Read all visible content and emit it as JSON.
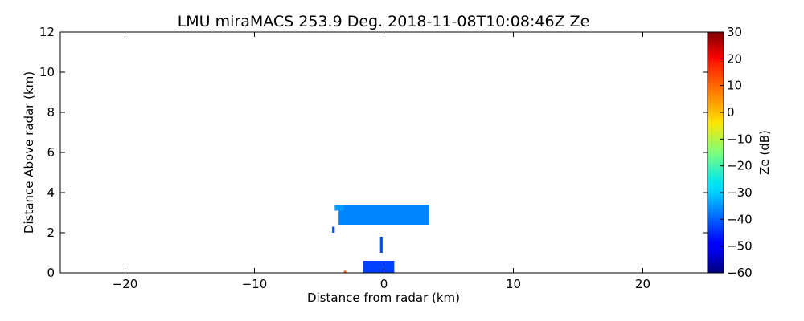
{
  "chart_data": {
    "type": "heatmap",
    "title": "LMU miraMACS 253.9 Deg. 2018-11-08T10:08:46Z  Ze",
    "xlabel": "Distance from radar (km)",
    "ylabel": "Distance Above radar  (km)",
    "xlim": [
      -25,
      25
    ],
    "ylim": [
      0,
      12
    ],
    "xticks": [
      -20,
      -10,
      0,
      10,
      20
    ],
    "xtick_labels": [
      "−20",
      "−10",
      "0",
      "10",
      "20"
    ],
    "yticks": [
      0,
      2,
      4,
      6,
      8,
      10,
      12
    ],
    "ytick_labels": [
      "0",
      "2",
      "4",
      "6",
      "8",
      "10",
      "12"
    ],
    "grid": false,
    "colorbar": {
      "label": "Ze (dB)",
      "colormap": "jet",
      "range": [
        -60,
        30
      ],
      "ticks": [
        -60,
        -50,
        -40,
        -30,
        -20,
        -10,
        0,
        10,
        20,
        30
      ],
      "tick_labels": [
        "−60",
        "−50",
        "−40",
        "−30",
        "−20",
        "−10",
        "0",
        "10",
        "20",
        "30"
      ]
    },
    "echoes": [
      {
        "x": [
          -3.5,
          3.5
        ],
        "y": [
          2.4,
          3.4
        ],
        "ze_db": -37
      },
      {
        "x": [
          -3.8,
          -3.1
        ],
        "y": [
          3.1,
          3.4
        ],
        "ze_db": -35
      },
      {
        "x": [
          -0.3,
          -0.1
        ],
        "y": [
          1.0,
          1.8
        ],
        "ze_db": -42
      },
      {
        "x": [
          -4.0,
          -3.8
        ],
        "y": [
          2.0,
          2.3
        ],
        "ze_db": -42
      },
      {
        "x": [
          -1.6,
          0.8
        ],
        "y": [
          0.0,
          0.6
        ],
        "ze_db": -43
      },
      {
        "x": [
          -3.1,
          -2.9
        ],
        "y": [
          0.0,
          0.1
        ],
        "ze_db": 10
      }
    ]
  }
}
